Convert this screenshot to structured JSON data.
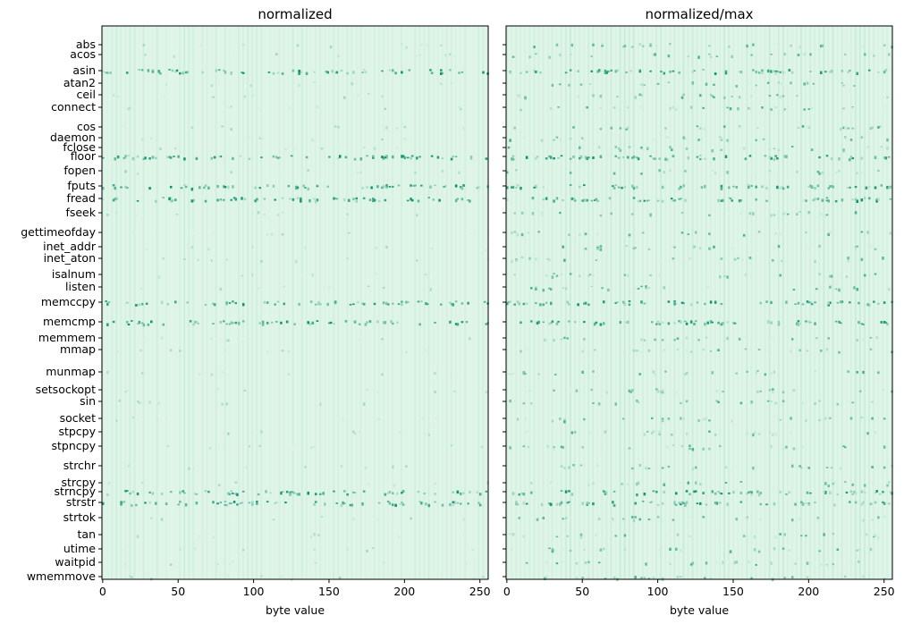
{
  "chart_data": [
    {
      "type": "heatmap",
      "title": "normalized",
      "xlabel": "byte value",
      "ylabel": "",
      "xlim": [
        0,
        255
      ],
      "xticks": [
        0,
        50,
        100,
        150,
        200,
        250
      ],
      "yticklabels": [
        "abs",
        "acos",
        "asin",
        "atan2",
        "ceil",
        "connect",
        "cos",
        "daemon",
        "fclose",
        "floor",
        "fopen",
        "fputs",
        "fread",
        "fseek",
        "gettimeofday",
        "inet_addr",
        "inet_aton",
        "isalnum",
        "listen",
        "memccpy",
        "memcmp",
        "memmem",
        "mmap",
        "munmap",
        "setsockopt",
        "sin",
        "socket",
        "stpcpy",
        "stpncpy",
        "strchr",
        "strcpy",
        "strncpy",
        "strstr",
        "strtok",
        "tan",
        "utime",
        "waitpid",
        "wmemmove"
      ],
      "colormap": [
        "#e3f7ea",
        "#0a8f6a"
      ],
      "hot_rows": [
        "asin",
        "floor",
        "fputs",
        "fread",
        "memccpy",
        "memcmp",
        "strncpy",
        "strstr"
      ]
    },
    {
      "type": "heatmap",
      "title": "normalized/max",
      "xlabel": "byte value",
      "ylabel": "",
      "xlim": [
        0,
        255
      ],
      "xticks": [
        0,
        50,
        100,
        150,
        200,
        250
      ],
      "yticklabels_visible": false,
      "colormap": [
        "#e3f7ea",
        "#0a8f6a"
      ]
    }
  ]
}
